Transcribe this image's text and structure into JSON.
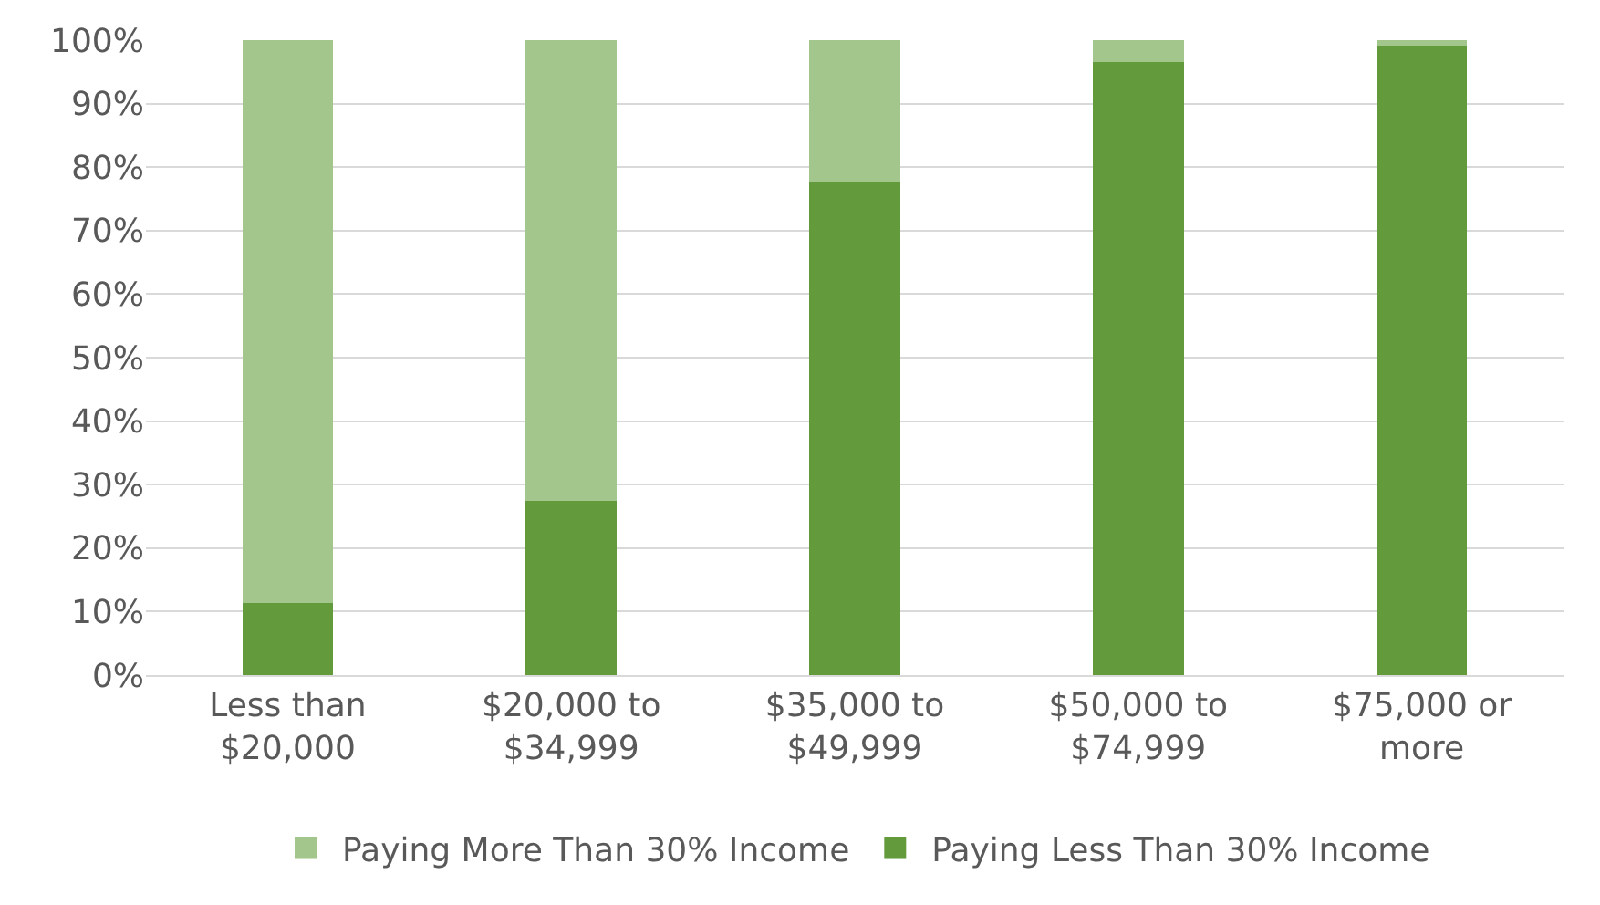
{
  "chart_data": {
    "type": "bar",
    "stacked": true,
    "categories": [
      "Less than\n$20,000",
      "$20,000 to\n$34,999",
      "$35,000 to\n$49,999",
      "$50,000 to\n$74,999",
      "$75,000 or\nmore"
    ],
    "series": [
      {
        "name": "Paying Less Than 30% Income",
        "color": "#629a3c",
        "values": [
          11.3,
          27.5,
          77.7,
          96.5,
          99.1
        ]
      },
      {
        "name": "Paying More Than 30% Income",
        "color": "#a3c68c",
        "values": [
          88.7,
          72.5,
          22.3,
          3.5,
          0.9
        ]
      }
    ],
    "ylim": [
      0,
      100
    ],
    "yticks": [
      {
        "value": 0,
        "label": "0%"
      },
      {
        "value": 10,
        "label": "10%"
      },
      {
        "value": 20,
        "label": "20%"
      },
      {
        "value": 30,
        "label": "30%"
      },
      {
        "value": 40,
        "label": "40%"
      },
      {
        "value": 50,
        "label": "50%"
      },
      {
        "value": 60,
        "label": "60%"
      },
      {
        "value": 70,
        "label": "70%"
      },
      {
        "value": 80,
        "label": "80%"
      },
      {
        "value": 90,
        "label": "90%"
      },
      {
        "value": 100,
        "label": "100%"
      }
    ],
    "grid": "y",
    "legend": "bottom"
  }
}
